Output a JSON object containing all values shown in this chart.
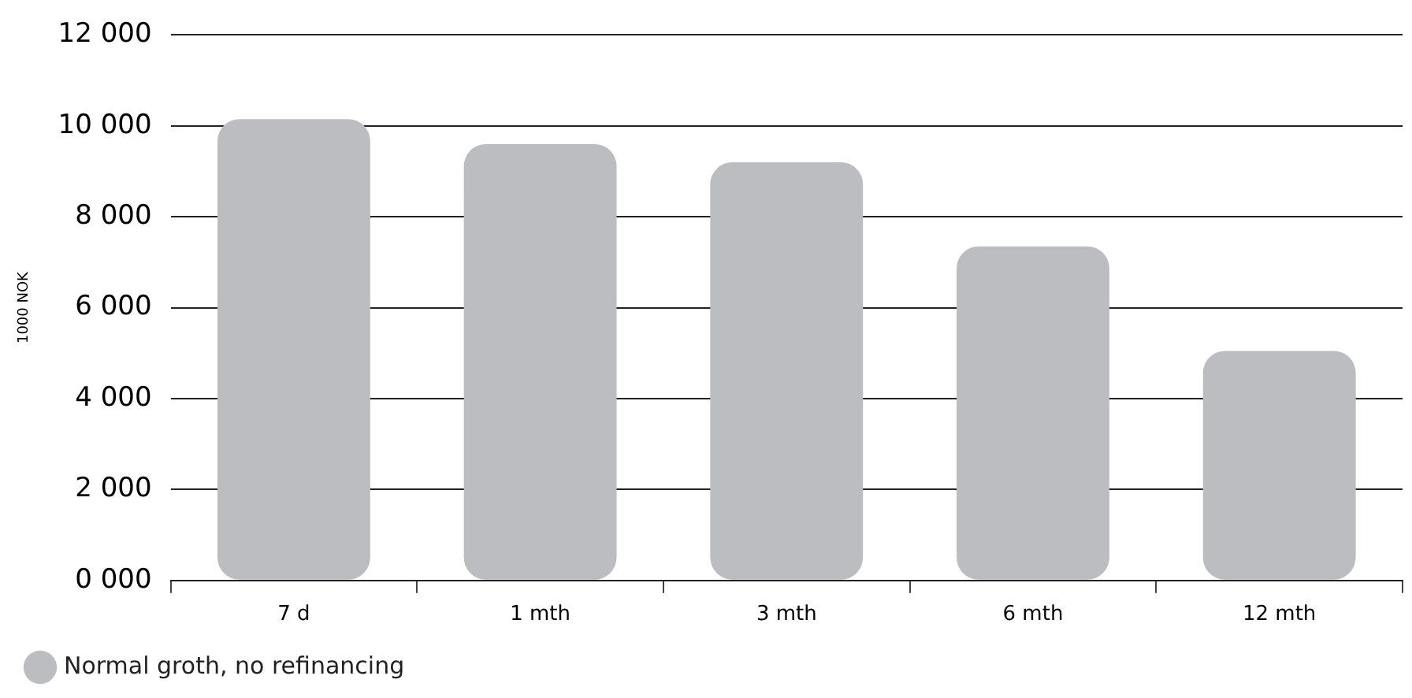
{
  "chart_data": {
    "type": "bar",
    "ylabel": "1000 NOK",
    "categories": [
      "7 d",
      "1 mth",
      "3 mth",
      "6 mth",
      "12 mth"
    ],
    "series": [
      {
        "name": "Normal groth, no refinancing",
        "color": "#bcbdc0",
        "values": [
          10150,
          9600,
          9200,
          7350,
          5050
        ]
      }
    ],
    "ylim": [
      0,
      12000
    ],
    "yticks": [
      {
        "value": 0,
        "label": "0 000"
      },
      {
        "value": 2000,
        "label": "2 000"
      },
      {
        "value": 4000,
        "label": "4 000"
      },
      {
        "value": 6000,
        "label": "6 000"
      },
      {
        "value": 8000,
        "label": "8 000"
      },
      {
        "value": 10000,
        "label": "10 000"
      },
      {
        "value": 12000,
        "label": "12 000"
      }
    ],
    "grid": "y",
    "legend": "bottom left"
  }
}
